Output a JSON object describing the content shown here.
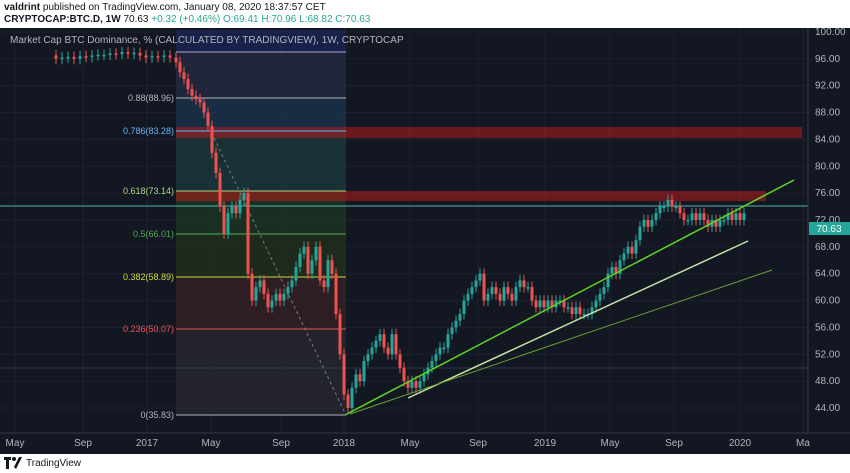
{
  "header": {
    "publisher": "valdrint",
    "published_text": "published on TradingView.com, January 08, 2020 18:37:57 CET",
    "symbol": "CRYPTOCAP:BTC.D, 1W",
    "last": "70.63",
    "change": "+0.32 (+0.46%)",
    "ohlc": "O:69.41 H:70.96 L:68.82 C:70.63"
  },
  "chart": {
    "title": "Market Cap BTC Dominance, % (CALCULATED BY TRADINGVIEW), 1W, CRYPTOCAP",
    "last_price": "70.63",
    "price_axis": [
      "100.00",
      "96.00",
      "92.00",
      "88.00",
      "84.00",
      "80.00",
      "76.00",
      "72.00",
      "68.00",
      "64.00",
      "60.00",
      "56.00",
      "52.00",
      "48.00",
      "44.00"
    ],
    "time_axis": [
      "May",
      "Sep",
      "2017",
      "May",
      "Sep",
      "2018",
      "May",
      "Sep",
      "2019",
      "May",
      "Sep",
      "2020",
      "Ma"
    ],
    "fib_levels": [
      {
        "label": "0.88(88.96)",
        "color": "#b2b5be"
      },
      {
        "label": "0.786(83.28)",
        "color": "#64b5f6"
      },
      {
        "label": "0.618(73.14)",
        "color": "#aed581"
      },
      {
        "label": "0.5(66.01)",
        "color": "#4caf50"
      },
      {
        "label": "0.382(58.89)",
        "color": "#cddc39"
      },
      {
        "label": "0.236(50.07)",
        "color": "#ef5350"
      },
      {
        "label": "0(35.83)",
        "color": "#b2b5be"
      }
    ],
    "colors": {
      "up": "#26a69a",
      "down": "#ef5350",
      "background": "#131722",
      "resistance": "#b71c1c"
    }
  },
  "footer": {
    "brand": "TradingView",
    "logo_icon": "tradingview-logo-icon"
  }
}
